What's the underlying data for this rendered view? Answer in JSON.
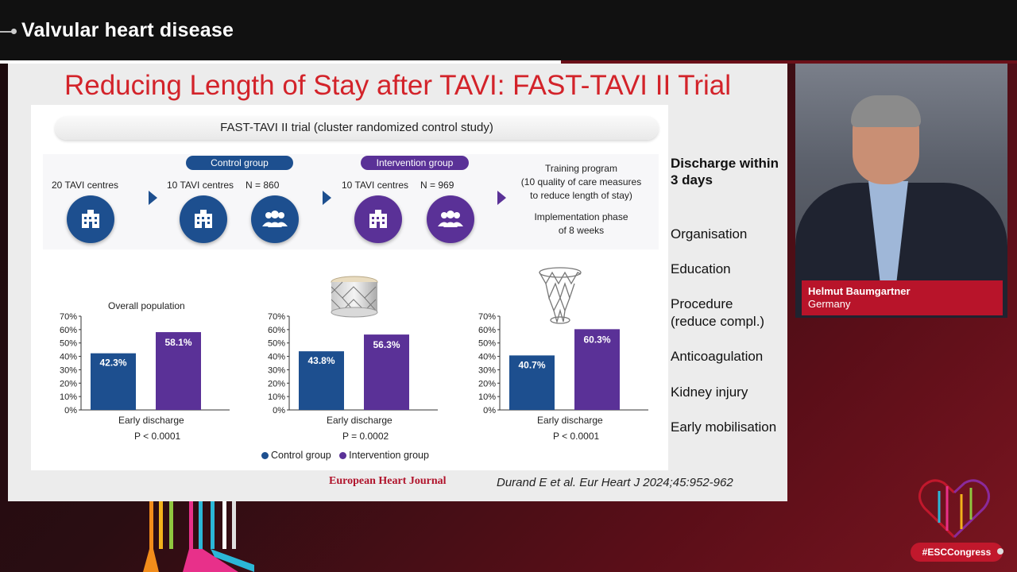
{
  "header": {
    "title": "Valvular heart disease"
  },
  "slide": {
    "title": "Reducing Length of Stay after TAVI: FAST-TAVI II Trial",
    "trial_banner": "FAST-TAVI II trial (cluster randomized control study)",
    "flow": {
      "start_label": "20 TAVI centres",
      "control": {
        "pill": "Control group",
        "centres": "10 TAVI centres",
        "n": "N = 860"
      },
      "intervention": {
        "pill": "Intervention group",
        "centres": "10 TAVI centres",
        "n": "N = 969"
      },
      "training": {
        "line1": "Training program",
        "line2": "(10 quality of care measures",
        "line3": "to reduce length of stay)",
        "line4": "Implementation phase",
        "line5": "of 8 weeks"
      }
    },
    "legend": {
      "control": "Control group",
      "intervention": "Intervention group"
    },
    "source_journal": "European Heart Journal",
    "citation": "Durand E et al. Eur Heart J 2024;45:952-962"
  },
  "chart_data": [
    {
      "type": "bar",
      "title": "Overall population",
      "categories": [
        "Early discharge"
      ],
      "series": [
        {
          "name": "Control group",
          "values": [
            42.3
          ]
        },
        {
          "name": "Intervention group",
          "values": [
            58.1
          ]
        }
      ],
      "data_labels": [
        "42.3%",
        "58.1%"
      ],
      "xlabel": "Early discharge",
      "pvalue": "P < 0.0001",
      "yticks": [
        "0%",
        "10%",
        "20%",
        "30%",
        "40%",
        "50%",
        "60%",
        "70%"
      ],
      "ylim": [
        0,
        70
      ]
    },
    {
      "type": "bar",
      "title": "",
      "categories": [
        "Early discharge"
      ],
      "series": [
        {
          "name": "Control group",
          "values": [
            43.8
          ]
        },
        {
          "name": "Intervention group",
          "values": [
            56.3
          ]
        }
      ],
      "data_labels": [
        "43.8%",
        "56.3%"
      ],
      "xlabel": "Early discharge",
      "pvalue": "P = 0.0002",
      "yticks": [
        "0%",
        "10%",
        "20%",
        "30%",
        "40%",
        "50%",
        "60%",
        "70%"
      ],
      "ylim": [
        0,
        70
      ]
    },
    {
      "type": "bar",
      "title": "",
      "categories": [
        "Early discharge"
      ],
      "series": [
        {
          "name": "Control group",
          "values": [
            40.7
          ]
        },
        {
          "name": "Intervention group",
          "values": [
            60.3
          ]
        }
      ],
      "data_labels": [
        "40.7%",
        "60.3%"
      ],
      "xlabel": "Early discharge",
      "pvalue": "P < 0.0001",
      "yticks": [
        "0%",
        "10%",
        "20%",
        "30%",
        "40%",
        "50%",
        "60%",
        "70%"
      ],
      "ylim": [
        0,
        70
      ]
    }
  ],
  "right_list": {
    "heading_line1": "Discharge within",
    "heading_line2": "3 days",
    "items": [
      "Organisation",
      "Education",
      "Procedure",
      "(reduce compl.)",
      "Anticoagulation",
      "Kidney injury",
      "Early mobilisation"
    ]
  },
  "speaker": {
    "name": "Helmut Baumgartner",
    "country": "Germany"
  },
  "branding": {
    "hashtag": "#ESCCongress"
  },
  "colors": {
    "control": "#1d4f8f",
    "intervention": "#5a3197",
    "title_red": "#d3232a",
    "brand_red": "#c1182c"
  },
  "icons": [
    "hospital-icon",
    "people-icon",
    "arrow-right-icon",
    "valve-icon",
    "esc-heart-logo-icon"
  ]
}
